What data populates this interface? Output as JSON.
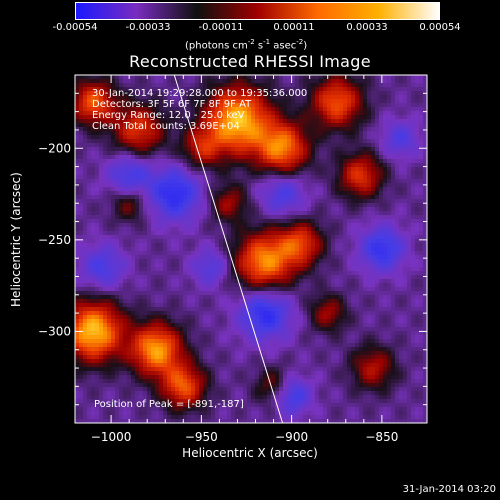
{
  "colorbar": {
    "ticks": [
      "-0.00054",
      "-0.00033",
      "-0.00011",
      "0.00011",
      "0.00033",
      "0.00054"
    ],
    "unit_prefix": "(photons cm",
    "unit_exp1": "-2",
    "unit_mid1": " s",
    "unit_exp2": "-1",
    "unit_mid2": " asec",
    "unit_exp3": "-2",
    "unit_suffix": ")",
    "colors": [
      "#1a1aff",
      "#7a2cc0",
      "#101010",
      "#a00000",
      "#ff6a00",
      "#ffb000",
      "#ffffff"
    ]
  },
  "chart_data": {
    "type": "heatmap",
    "title": "Reconstructed RHESSI Image",
    "xlabel": "Heliocentric X (arcsec)",
    "ylabel": "Heliocentric Y (arcsec)",
    "xlim": [
      -1020,
      -825
    ],
    "ylim": [
      -350,
      -160
    ],
    "xticks": [
      -1000,
      -950,
      -900,
      -850
    ],
    "yticks": [
      -200,
      -250,
      -300
    ],
    "xtick_labels": [
      "−1000",
      "−950",
      "−900",
      "−850"
    ],
    "ytick_labels": [
      "−200",
      "−250",
      "−300"
    ],
    "limb_line": {
      "x": [
        -965,
        -905
      ],
      "y": [
        -160,
        -350
      ]
    },
    "peak": {
      "x": -891,
      "y": -187
    },
    "blobs": [
      {
        "x": -930,
        "y": -185,
        "r": 18,
        "v": 1.0
      },
      {
        "x": -905,
        "y": -200,
        "r": 14,
        "v": 0.8
      },
      {
        "x": -875,
        "y": -175,
        "r": 14,
        "v": 0.7
      },
      {
        "x": -862,
        "y": -215,
        "r": 12,
        "v": 0.6
      },
      {
        "x": -985,
        "y": -190,
        "r": 14,
        "v": 0.6
      },
      {
        "x": -1010,
        "y": -175,
        "r": 12,
        "v": 0.7
      },
      {
        "x": -1010,
        "y": -300,
        "r": 16,
        "v": 1.0
      },
      {
        "x": -975,
        "y": -310,
        "r": 14,
        "v": 0.9
      },
      {
        "x": -960,
        "y": -330,
        "r": 12,
        "v": 0.7
      },
      {
        "x": -915,
        "y": -262,
        "r": 16,
        "v": 0.85
      },
      {
        "x": -895,
        "y": -252,
        "r": 12,
        "v": 0.6
      },
      {
        "x": -935,
        "y": -230,
        "r": 10,
        "v": 0.4
      },
      {
        "x": -880,
        "y": -290,
        "r": 10,
        "v": 0.4
      },
      {
        "x": -855,
        "y": -320,
        "r": 12,
        "v": 0.45
      },
      {
        "x": -910,
        "y": -330,
        "r": 10,
        "v": 0.35
      },
      {
        "x": -990,
        "y": -230,
        "r": 10,
        "v": 0.35
      },
      {
        "x": -950,
        "y": -200,
        "r": 11,
        "v": 0.45
      },
      {
        "x": -965,
        "y": -225,
        "r": 14,
        "v": -0.6
      },
      {
        "x": -905,
        "y": -225,
        "r": 12,
        "v": -0.4
      },
      {
        "x": -850,
        "y": -255,
        "r": 12,
        "v": -0.55
      },
      {
        "x": -990,
        "y": -215,
        "r": 12,
        "v": -0.45
      },
      {
        "x": -915,
        "y": -290,
        "r": 14,
        "v": -0.6
      },
      {
        "x": -900,
        "y": -335,
        "r": 10,
        "v": -0.5
      },
      {
        "x": -945,
        "y": -265,
        "r": 10,
        "v": -0.35
      },
      {
        "x": -1005,
        "y": -265,
        "r": 12,
        "v": -0.4
      },
      {
        "x": -840,
        "y": -195,
        "r": 10,
        "v": -0.35
      }
    ]
  },
  "annotations": {
    "time": "30-Jan-2014 19:29:28.000 to 19:35:36.000",
    "detectors": "Detectors: 3F 5F 6F 7F 8F 9F AT",
    "energy": "Energy Range: 12.0 - 25.0 keV",
    "clean": "Clean     Total counts: 3.69E+04",
    "peak": "Position of Peak = [-891,-187]"
  },
  "footer": "31-Jan-2014 03:20"
}
